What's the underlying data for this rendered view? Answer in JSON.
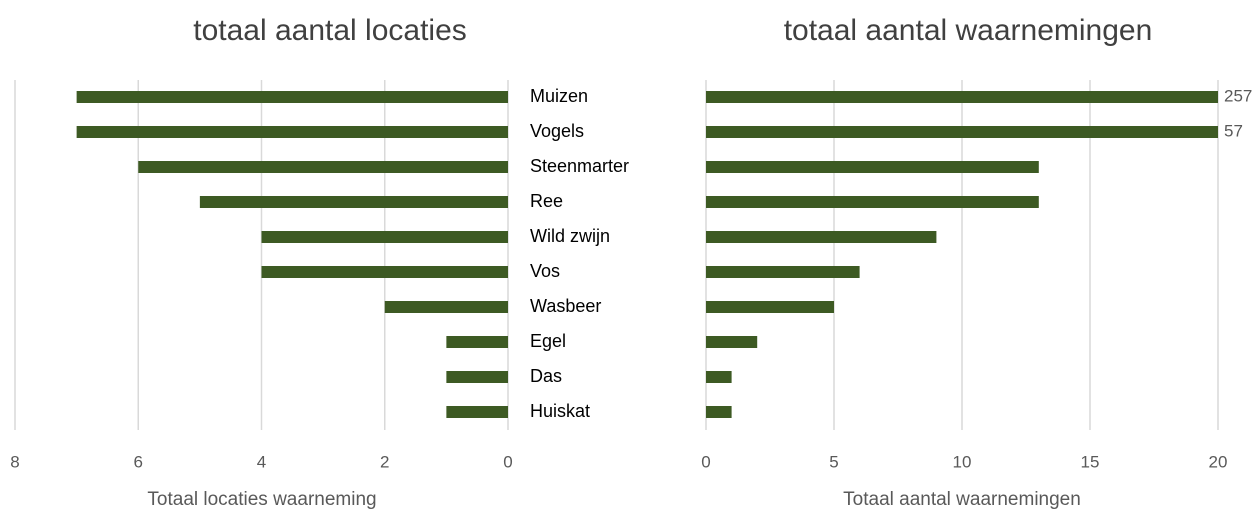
{
  "chart_data": [
    {
      "type": "bar",
      "orientation": "horizontal",
      "title": "totaal aantal locaties",
      "x_label": "Totaal locaties waarneming",
      "categories": [
        "Muizen",
        "Vogels",
        "Steenmarter",
        "Ree",
        "Wild zwijn",
        "Vos",
        "Wasbeer",
        "Egel",
        "Das",
        "Huiskat"
      ],
      "values": [
        7,
        7,
        6,
        5,
        4,
        4,
        2,
        1,
        1,
        1
      ],
      "color": "#3d5a23",
      "xlim": [
        0,
        8
      ],
      "xticks": [
        0,
        2,
        4,
        6,
        8
      ],
      "x_reversed": true,
      "grid": true
    },
    {
      "type": "bar",
      "orientation": "horizontal",
      "title": "totaal aantal waarnemingen",
      "x_label": "Totaal aantal waarnemingen",
      "values": [
        257,
        57,
        13,
        13,
        9,
        6,
        5,
        2,
        1,
        1
      ],
      "value_labels": [
        "257",
        "57",
        null,
        null,
        null,
        null,
        null,
        null,
        null,
        null
      ],
      "color": "#3d5a23",
      "xlim": [
        0,
        20
      ],
      "xticks": [
        0,
        5,
        10,
        15,
        20
      ],
      "x_reversed": false,
      "grid": true
    }
  ]
}
